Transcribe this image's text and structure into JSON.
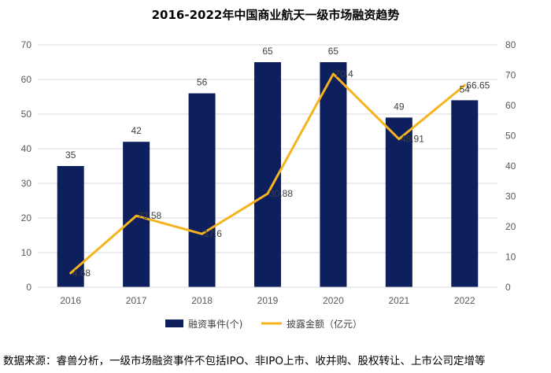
{
  "chart_data": {
    "type": "bar",
    "title": "2016-2022年中国商业航天一级市场融资趋势",
    "categories": [
      "2016",
      "2017",
      "2018",
      "2019",
      "2020",
      "2021",
      "2022"
    ],
    "series": [
      {
        "name": "融资事件(个)",
        "type": "bar",
        "axis": "left",
        "color": "#0d1f5c",
        "values": [
          35,
          42,
          56,
          65,
          65,
          49,
          54
        ]
      },
      {
        "name": "披露金额（亿元）",
        "type": "line",
        "axis": "right",
        "color": "#f5b41e",
        "values": [
          4.68,
          23.58,
          17.6,
          30.88,
          70.4,
          48.91,
          66.65
        ]
      }
    ],
    "y_left": {
      "min": 0,
      "max": 70,
      "step": 10
    },
    "y_right": {
      "min": 0,
      "max": 80,
      "step": 10
    },
    "grid": true,
    "legend_position": "bottom"
  },
  "footer": {
    "source": "数据来源：睿兽分析，一级市场融资事件不包括IPO、非IPO上市、收并购、股权转让、上市公司定增等"
  }
}
